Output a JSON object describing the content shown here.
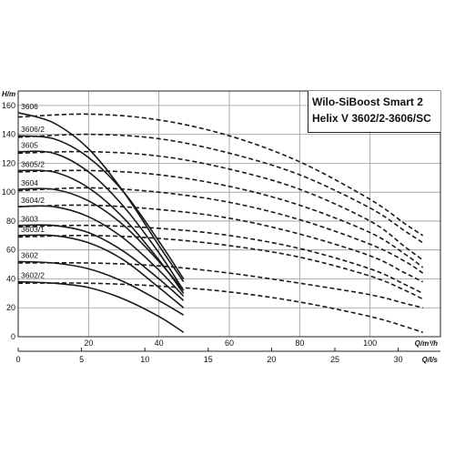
{
  "chart_data": {
    "type": "line",
    "title_lines": [
      "Wilo-SiBoost Smart 2",
      "Helix V 3602/2-3606/SC"
    ],
    "ylabel": "H/m",
    "xlabel": "Q/m³/h",
    "x2label": "Q/l/s",
    "xlim": [
      0,
      120
    ],
    "ylim": [
      0,
      170
    ],
    "xticks": [
      0,
      20,
      40,
      60,
      80,
      100
    ],
    "yticks": [
      0,
      20,
      40,
      60,
      80,
      100,
      120,
      140,
      160
    ],
    "x2ticks": [
      0,
      5,
      10,
      15,
      20,
      25,
      30
    ],
    "grid": true,
    "series_note": "solid = single-pump curve, dashed = two-pump curve",
    "series": [
      {
        "name": "3606",
        "solid": [
          [
            0,
            155
          ],
          [
            10,
            148
          ],
          [
            20,
            130
          ],
          [
            30,
            100
          ],
          [
            40,
            63
          ],
          [
            47,
            38
          ]
        ],
        "dashed": [
          [
            0,
            152
          ],
          [
            20,
            154
          ],
          [
            40,
            150
          ],
          [
            60,
            139
          ],
          [
            80,
            121
          ],
          [
            100,
            95
          ],
          [
            110,
            78
          ],
          [
            115,
            70
          ]
        ]
      },
      {
        "name": "3606/2",
        "solid": [
          [
            0,
            139
          ],
          [
            10,
            137
          ],
          [
            20,
            124
          ],
          [
            30,
            100
          ],
          [
            40,
            66
          ],
          [
            47,
            40
          ]
        ],
        "dashed": [
          [
            0,
            138
          ],
          [
            20,
            140
          ],
          [
            40,
            137
          ],
          [
            60,
            127
          ],
          [
            80,
            112
          ],
          [
            100,
            89
          ],
          [
            110,
            73
          ],
          [
            115,
            65
          ]
        ]
      },
      {
        "name": "3605",
        "solid": [
          [
            0,
            128
          ],
          [
            10,
            127
          ],
          [
            20,
            114
          ],
          [
            30,
            90
          ],
          [
            40,
            58
          ],
          [
            47,
            32
          ]
        ],
        "dashed": [
          [
            0,
            127
          ],
          [
            20,
            128
          ],
          [
            40,
            125
          ],
          [
            60,
            116
          ],
          [
            80,
            102
          ],
          [
            100,
            80
          ],
          [
            110,
            62
          ],
          [
            115,
            53
          ]
        ]
      },
      {
        "name": "3605/2",
        "solid": [
          [
            0,
            115
          ],
          [
            10,
            114
          ],
          [
            20,
            103
          ],
          [
            30,
            82
          ],
          [
            40,
            53
          ],
          [
            47,
            30
          ]
        ],
        "dashed": [
          [
            0,
            114
          ],
          [
            20,
            115
          ],
          [
            40,
            112
          ],
          [
            60,
            104
          ],
          [
            80,
            91
          ],
          [
            100,
            72
          ],
          [
            110,
            57
          ],
          [
            115,
            48
          ]
        ]
      },
      {
        "name": "3604",
        "solid": [
          [
            0,
            102
          ],
          [
            10,
            102
          ],
          [
            20,
            94
          ],
          [
            30,
            77
          ],
          [
            40,
            52
          ],
          [
            47,
            32
          ]
        ],
        "dashed": [
          [
            0,
            101
          ],
          [
            20,
            103
          ],
          [
            40,
            100
          ],
          [
            60,
            93
          ],
          [
            80,
            81
          ],
          [
            100,
            64
          ],
          [
            110,
            52
          ],
          [
            115,
            44
          ]
        ]
      },
      {
        "name": "3604/2",
        "solid": [
          [
            0,
            90
          ],
          [
            10,
            90
          ],
          [
            20,
            83
          ],
          [
            30,
            68
          ],
          [
            40,
            46
          ],
          [
            47,
            28
          ]
        ],
        "dashed": [
          [
            0,
            90
          ],
          [
            20,
            91
          ],
          [
            40,
            88
          ],
          [
            60,
            82
          ],
          [
            80,
            71
          ],
          [
            100,
            56
          ],
          [
            110,
            44
          ],
          [
            115,
            38
          ]
        ]
      },
      {
        "name": "3603",
        "solid": [
          [
            0,
            77
          ],
          [
            10,
            77
          ],
          [
            20,
            72
          ],
          [
            30,
            59
          ],
          [
            40,
            40
          ],
          [
            47,
            25
          ]
        ],
        "dashed": [
          [
            0,
            76
          ],
          [
            20,
            77
          ],
          [
            40,
            75
          ],
          [
            60,
            70
          ],
          [
            80,
            61
          ],
          [
            100,
            47
          ],
          [
            110,
            36
          ],
          [
            115,
            30
          ]
        ]
      },
      {
        "name": "3603/1",
        "solid": [
          [
            0,
            70
          ],
          [
            10,
            70
          ],
          [
            20,
            65
          ],
          [
            30,
            53
          ],
          [
            40,
            34
          ],
          [
            47,
            20
          ]
        ],
        "dashed": [
          [
            0,
            69
          ],
          [
            20,
            70
          ],
          [
            40,
            68
          ],
          [
            60,
            63
          ],
          [
            80,
            55
          ],
          [
            100,
            42
          ],
          [
            110,
            32
          ],
          [
            115,
            26
          ]
        ]
      },
      {
        "name": "3602",
        "solid": [
          [
            0,
            52
          ],
          [
            10,
            51
          ],
          [
            20,
            47
          ],
          [
            30,
            38
          ],
          [
            40,
            25
          ],
          [
            47,
            15
          ]
        ],
        "dashed": [
          [
            0,
            51
          ],
          [
            20,
            51
          ],
          [
            40,
            49
          ],
          [
            60,
            44
          ],
          [
            80,
            37
          ],
          [
            100,
            29
          ],
          [
            110,
            23
          ],
          [
            115,
            20
          ]
        ]
      },
      {
        "name": "3602/2",
        "solid": [
          [
            0,
            38
          ],
          [
            10,
            37
          ],
          [
            20,
            34
          ],
          [
            30,
            26
          ],
          [
            40,
            14
          ],
          [
            47,
            3
          ]
        ],
        "dashed": [
          [
            0,
            37
          ],
          [
            20,
            37
          ],
          [
            40,
            35
          ],
          [
            60,
            31
          ],
          [
            80,
            24
          ],
          [
            100,
            14
          ],
          [
            110,
            7
          ],
          [
            115,
            3
          ]
        ]
      }
    ]
  }
}
